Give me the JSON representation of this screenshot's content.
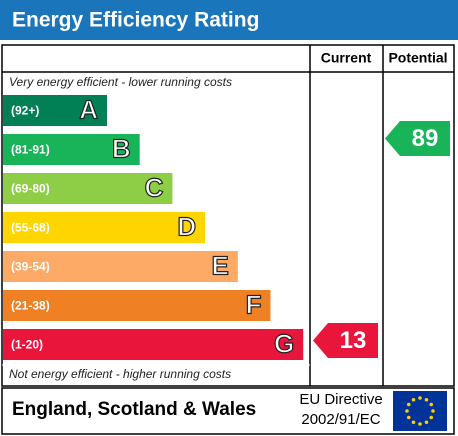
{
  "title": "Energy Efficiency Rating",
  "columns": [
    "Current",
    "Potential"
  ],
  "top_note": "Very energy efficient - lower running costs",
  "bottom_note": "Not energy efficient - higher running costs",
  "bands": [
    {
      "range": "(92+)",
      "letter": "A",
      "color": "#008054"
    },
    {
      "range": "(81-91)",
      "letter": "B",
      "color": "#19b459"
    },
    {
      "range": "(69-80)",
      "letter": "C",
      "color": "#8dce46"
    },
    {
      "range": "(55-68)",
      "letter": "D",
      "color": "#ffd500"
    },
    {
      "range": "(39-54)",
      "letter": "E",
      "color": "#fcaa65"
    },
    {
      "range": "(21-38)",
      "letter": "F",
      "color": "#ef8023"
    },
    {
      "range": "(1-20)",
      "letter": "G",
      "color": "#e9153b"
    }
  ],
  "current": {
    "value": 13,
    "color": "#e9153b"
  },
  "potential": {
    "value": 89,
    "color": "#19b459"
  },
  "footer": {
    "region": "England, Scotland & Wales",
    "directive": [
      "EU Directive",
      "2002/91/EC"
    ]
  }
}
